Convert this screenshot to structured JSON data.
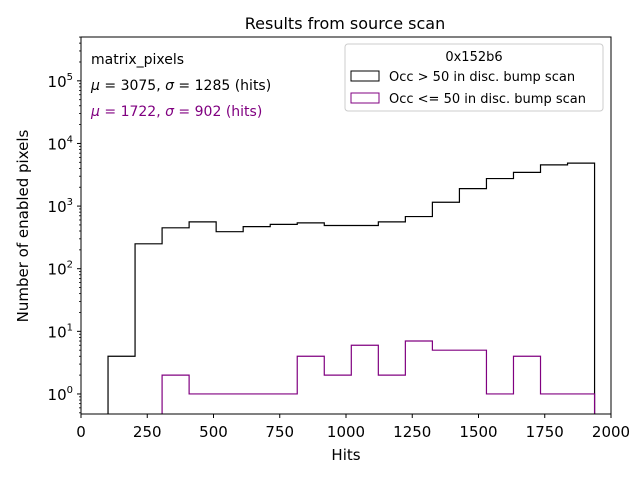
{
  "chart_data": {
    "type": "histogram",
    "title": "Results from source scan",
    "xlabel": "Hits",
    "ylabel": "Number of enabled pixels",
    "xlim": [
      0,
      2000
    ],
    "ylim_log10": [
      -0.32,
      5.7
    ],
    "yscale": "log",
    "x_ticks": [
      0,
      250,
      500,
      750,
      1000,
      1250,
      1500,
      1750,
      2000
    ],
    "x_tick_labels": [
      "0",
      "250",
      "500",
      "750",
      "1000",
      "1250",
      "1500",
      "1750",
      "2000"
    ],
    "y_ticks": [
      {
        "exp": 0,
        "base": "10",
        "sup": "0"
      },
      {
        "exp": 1,
        "base": "10",
        "sup": "1"
      },
      {
        "exp": 2,
        "base": "10",
        "sup": "2"
      },
      {
        "exp": 3,
        "base": "10",
        "sup": "3"
      },
      {
        "exp": 4,
        "base": "10",
        "sup": "4"
      },
      {
        "exp": 5,
        "base": "10",
        "sup": "5"
      }
    ],
    "bin_edges": [
      102,
      204,
      306,
      408,
      510,
      612,
      714,
      816,
      918,
      1020,
      1122,
      1224,
      1326,
      1428,
      1530,
      1632,
      1734,
      1836,
      1938
    ],
    "series": [
      {
        "name": "Occ > 50 in disc. bump scan",
        "color": "#000000",
        "values": [
          4,
          250,
          450,
          560,
          390,
          470,
          510,
          540,
          490,
          490,
          560,
          680,
          1150,
          1900,
          2750,
          3450,
          4550,
          4850
        ]
      },
      {
        "name": "Occ <= 50 in disc. bump scan",
        "color": "#800080",
        "values": [
          0,
          0,
          2,
          1,
          1,
          1,
          1,
          4,
          2,
          6,
          2,
          7,
          5,
          5,
          1,
          4,
          1,
          1
        ]
      }
    ],
    "legend": {
      "title": "0x152b6",
      "position": "top-right",
      "entries": [
        "Occ > 50 in disc. bump scan",
        "Occ <= 50 in disc. bump scan"
      ]
    },
    "annotations": {
      "name": "matrix_pixels",
      "line1": {
        "mu": "3075",
        "sigma": "1285",
        "unit": "(hits)",
        "color": "#000000"
      },
      "line2": {
        "mu": "1722",
        "sigma": "902",
        "unit": "(hits)",
        "color": "#800080"
      }
    },
    "symbols": {
      "mu": "μ",
      "sigma": "σ",
      "eq": " = ",
      "sep": ", "
    }
  }
}
